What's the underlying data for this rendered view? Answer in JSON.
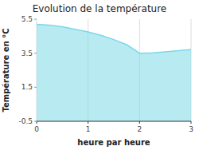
{
  "chart_data": {
    "type": "area",
    "title": "Evolution de la température",
    "x_label": "heure par heure",
    "y_label": "Température en °C",
    "x": [
      0,
      0.25,
      0.5,
      0.75,
      1.0,
      1.25,
      1.5,
      1.75,
      2.0,
      2.25,
      2.5,
      2.75,
      3.0
    ],
    "values": [
      5.2,
      5.15,
      5.05,
      4.9,
      4.75,
      4.55,
      4.3,
      4.0,
      3.5,
      3.52,
      3.58,
      3.65,
      3.72
    ],
    "color": "#7dd8e8",
    "xlim": [
      0,
      3
    ],
    "ylim": [
      -0.5,
      5.5
    ],
    "xticks": [
      0,
      1,
      2,
      3
    ],
    "yticks": [
      -0.5,
      1.5,
      3.5,
      5.5
    ],
    "grid": true
  }
}
